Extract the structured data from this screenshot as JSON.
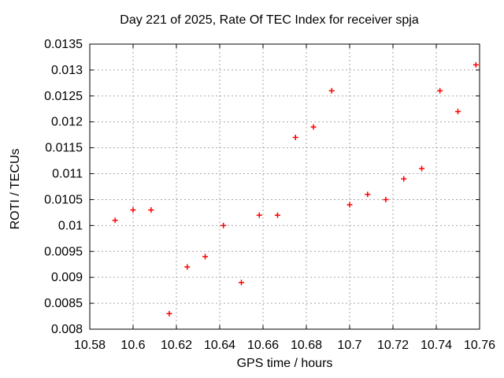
{
  "chart_data": {
    "type": "scatter",
    "title": "Day 221 of 2025, Rate Of TEC Index for receiver spja",
    "xlabel": "GPS time / hours",
    "ylabel": "ROTI / TECUs",
    "xlim": [
      10.58,
      10.76
    ],
    "ylim": [
      0.008,
      0.0135
    ],
    "grid": true,
    "grid_style": "dashed",
    "legend": "none",
    "marker": {
      "shape": "plus",
      "size": 7,
      "color": "#ff0000"
    },
    "x_ticks": {
      "values": [
        10.58,
        10.6,
        10.62,
        10.64,
        10.66,
        10.68,
        10.7,
        10.72,
        10.74,
        10.76
      ],
      "labels": [
        "10.58",
        "10.6",
        "10.62",
        "10.64",
        "10.66",
        "10.68",
        "10.7",
        "10.72",
        "10.74",
        "10.76"
      ]
    },
    "y_ticks": {
      "values": [
        0.008,
        0.0085,
        0.009,
        0.0095,
        0.01,
        0.0105,
        0.011,
        0.0115,
        0.012,
        0.0125,
        0.013,
        0.0135
      ],
      "labels": [
        "0.008",
        "0.0085",
        "0.009",
        "0.0095",
        "0.01",
        "0.0105",
        "0.011",
        "0.0115",
        "0.012",
        "0.0125",
        "0.013",
        "0.0135"
      ]
    },
    "points": [
      [
        10.5917,
        0.0101
      ],
      [
        10.6,
        0.0103
      ],
      [
        10.6083,
        0.0103
      ],
      [
        10.6167,
        0.0083
      ],
      [
        10.625,
        0.0092
      ],
      [
        10.6333,
        0.0094
      ],
      [
        10.6417,
        0.01
      ],
      [
        10.65,
        0.0089
      ],
      [
        10.6583,
        0.0102
      ],
      [
        10.6667,
        0.0102
      ],
      [
        10.675,
        0.0117
      ],
      [
        10.6833,
        0.0119
      ],
      [
        10.6917,
        0.0126
      ],
      [
        10.7,
        0.0104
      ],
      [
        10.7083,
        0.0106
      ],
      [
        10.7167,
        0.0105
      ],
      [
        10.725,
        0.0109
      ],
      [
        10.7333,
        0.0111
      ],
      [
        10.7417,
        0.0126
      ],
      [
        10.75,
        0.0122
      ],
      [
        10.7583,
        0.0131
      ]
    ]
  },
  "colors": {
    "marker": "#ff0000",
    "axis": "#000000",
    "grid": "#a6a6a6",
    "text": "#000000",
    "background": "#ffffff"
  }
}
